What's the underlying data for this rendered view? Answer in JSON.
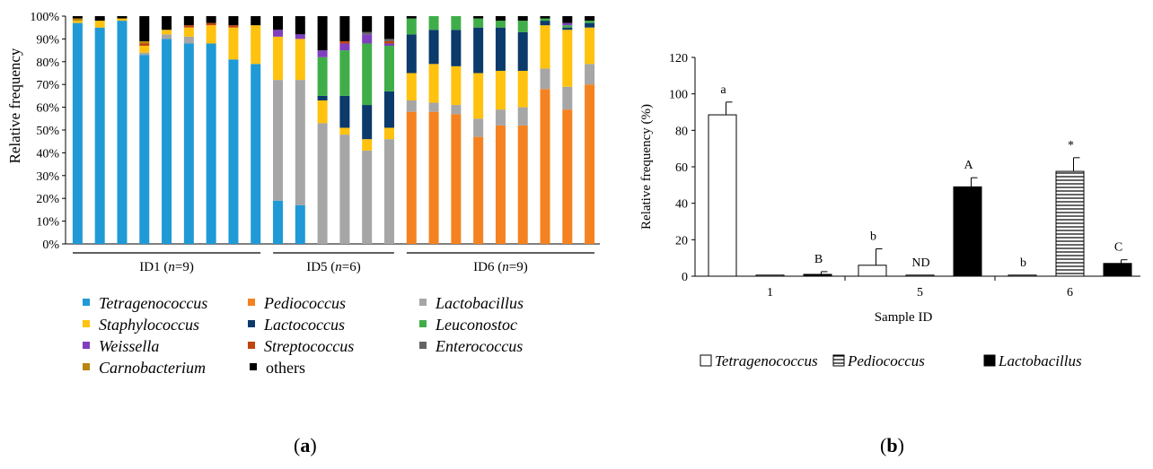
{
  "chart_data": [
    {
      "type": "bar",
      "stacked": true,
      "panel_label": "a",
      "ylabel": "Relative frequency",
      "yticks": [
        "0%",
        "10%",
        "20%",
        "30%",
        "40%",
        "50%",
        "60%",
        "70%",
        "80%",
        "90%",
        "100%"
      ],
      "ylim": [
        0,
        100
      ],
      "groups": [
        {
          "label": "ID1",
          "n": "n",
          "n_value": "=9",
          "count": 9
        },
        {
          "label": "ID5",
          "n": "n",
          "n_value": "=6",
          "count": 6
        },
        {
          "label": "ID6",
          "n": "n",
          "n_value": "=9",
          "count": 9
        }
      ],
      "legend": [
        {
          "name": "Tetragenococcus",
          "italic": true,
          "color": "#1f9ad6"
        },
        {
          "name": "Pediococcus",
          "italic": true,
          "color": "#f58220"
        },
        {
          "name": "Lactobacillus",
          "italic": true,
          "color": "#a6a6a6"
        },
        {
          "name": "Staphylococcus",
          "italic": true,
          "color": "#ffc20e"
        },
        {
          "name": "Lactococcus",
          "italic": true,
          "color": "#0b3a6b"
        },
        {
          "name": "Leuconostoc",
          "italic": true,
          "color": "#3fae49"
        },
        {
          "name": "Weissella",
          "italic": true,
          "color": "#7f3fbf"
        },
        {
          "name": "Streptococcus",
          "italic": true,
          "color": "#c0440d"
        },
        {
          "name": "Enterococcus",
          "italic": true,
          "color": "#636363"
        },
        {
          "name": "Carnobacterium",
          "italic": true,
          "color": "#b8860b"
        },
        {
          "name": "others",
          "italic": false,
          "color": "#000000"
        }
      ],
      "samples": [
        [
          97,
          0,
          0,
          1,
          0,
          0,
          0,
          0,
          0,
          1,
          1
        ],
        [
          95,
          0,
          0,
          3,
          0,
          0,
          0,
          0,
          0,
          0,
          2
        ],
        [
          98,
          0,
          0,
          1,
          0,
          0,
          0,
          0,
          0,
          0,
          1
        ],
        [
          83,
          0,
          1,
          3,
          0,
          0,
          0,
          1,
          0,
          1,
          11
        ],
        [
          90,
          0,
          2,
          2,
          0,
          0,
          0,
          0,
          0,
          0,
          6
        ],
        [
          88,
          0,
          3,
          4,
          0,
          0,
          0,
          1,
          0,
          0,
          4
        ],
        [
          88,
          0,
          0,
          8,
          0,
          0,
          0,
          1,
          0,
          0,
          3
        ],
        [
          81,
          0,
          0,
          14,
          0,
          0,
          0,
          1,
          0,
          0,
          4
        ],
        [
          79,
          0,
          0,
          17,
          0,
          0,
          0,
          0,
          0,
          0,
          4
        ],
        [
          19,
          0,
          53,
          19,
          0,
          0,
          3,
          0,
          0,
          0,
          6
        ],
        [
          17,
          0,
          55,
          18,
          0,
          0,
          2,
          0,
          0,
          0,
          8
        ],
        [
          0,
          0,
          53,
          10,
          2,
          17,
          3,
          0,
          0,
          0,
          15
        ],
        [
          0,
          0,
          48,
          3,
          14,
          20,
          3,
          1,
          0,
          0,
          11
        ],
        [
          0,
          0,
          41,
          5,
          15,
          27,
          4,
          0,
          1,
          0,
          7
        ],
        [
          0,
          0,
          46,
          5,
          16,
          20,
          1,
          1,
          1,
          0,
          10
        ],
        [
          0,
          58,
          5,
          12,
          17,
          7,
          0,
          0,
          0,
          0,
          1
        ],
        [
          0,
          58,
          4,
          17,
          15,
          6,
          0,
          0,
          0,
          0,
          0
        ],
        [
          0,
          57,
          4,
          17,
          16,
          6,
          0,
          0,
          0,
          0,
          0
        ],
        [
          0,
          47,
          8,
          20,
          20,
          4,
          0,
          0,
          0,
          0,
          1
        ],
        [
          0,
          52,
          7,
          17,
          19,
          3,
          0,
          0,
          0,
          0,
          2
        ],
        [
          0,
          52,
          8,
          16,
          17,
          5,
          0,
          0,
          0,
          0,
          2
        ],
        [
          0,
          68,
          9,
          19,
          2,
          1,
          0,
          0,
          0,
          0,
          1
        ],
        [
          0,
          59,
          10,
          25,
          1,
          1,
          1,
          0,
          0,
          0,
          3
        ],
        [
          0,
          70,
          9,
          16,
          2,
          1,
          0,
          0,
          0,
          0,
          2
        ]
      ]
    },
    {
      "type": "bar",
      "panel_label": "b",
      "xlabel": "Sample ID",
      "ylabel": "Relative frequency (%)",
      "ylim": [
        0,
        120
      ],
      "yticks": [
        "0",
        "20",
        "40",
        "60",
        "80",
        "100",
        "120"
      ],
      "categories": [
        "1",
        "5",
        "6"
      ],
      "series": [
        {
          "name": "Tetragenococcus",
          "style": "white",
          "values": [
            88.5,
            6,
            0
          ],
          "errors": [
            7,
            9,
            0
          ],
          "letters": [
            "a",
            "b",
            "b"
          ]
        },
        {
          "name": "Pediococcus",
          "style": "hatched",
          "values": [
            0,
            0,
            57.5
          ],
          "errors": [
            0,
            0,
            7.5
          ],
          "letters": [
            "",
            "ND",
            "*"
          ]
        },
        {
          "name": "Lactobacillus",
          "style": "black",
          "values": [
            1,
            49,
            7
          ],
          "errors": [
            1.5,
            5,
            2
          ],
          "letters": [
            "B",
            "A",
            "C"
          ]
        }
      ]
    }
  ],
  "captions": {
    "a_open": "(",
    "a_letter": "a",
    "a_close": ")",
    "b_open": "(",
    "b_letter": "b",
    "b_close": ")"
  }
}
